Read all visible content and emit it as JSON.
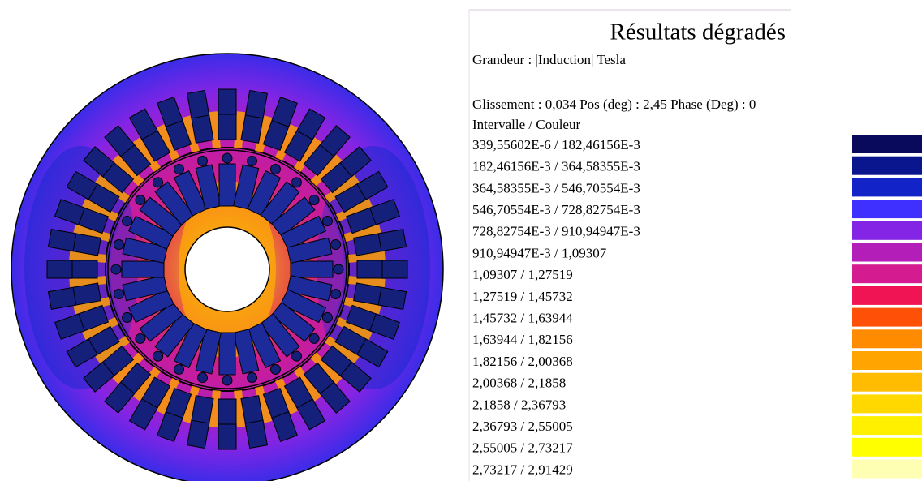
{
  "panel": {
    "title": "Résultats dégradés",
    "quantity": "Grandeur : |Induction| Tesla",
    "parameters": "Glissement : 0,034  Pos (deg) : 2,45 Phase (Deg) : 0",
    "legend_header": "Intervalle  /  Couleur",
    "intervals": [
      {
        "label": "339,55602E-6  /  182,46156E-3",
        "color": "#0a0a5c"
      },
      {
        "label": "182,46156E-3  /  364,58355E-3",
        "color": "#0a168e"
      },
      {
        "label": "364,58355E-3  /  546,70554E-3",
        "color": "#1224c8"
      },
      {
        "label": "546,70554E-3  /  728,82754E-3",
        "color": "#4030ff"
      },
      {
        "label": "728,82754E-3  /  910,94947E-3",
        "color": "#8424e4"
      },
      {
        "label": "910,94947E-3  /  1,09307",
        "color": "#b41eb8"
      },
      {
        "label": "1,09307  /  1,27519",
        "color": "#d41c90"
      },
      {
        "label": "1,27519  /  1,45732",
        "color": "#f01454"
      },
      {
        "label": "1,45732  /  1,63944",
        "color": "#ff5008"
      },
      {
        "label": "1,63944  /  1,82156",
        "color": "#ff8c00"
      },
      {
        "label": "1,82156  /  2,00368",
        "color": "#ffa400"
      },
      {
        "label": "2,00368  /  2,1858",
        "color": "#ffbc00"
      },
      {
        "label": "2,1858  /  2,36793",
        "color": "#ffd800"
      },
      {
        "label": "2,36793  /  2,55005",
        "color": "#fff000"
      },
      {
        "label": "2,55005  /  2,73217",
        "color": "#ffff00"
      },
      {
        "label": "2,73217  /  2,91429",
        "color": "#ffffb4"
      }
    ]
  }
}
